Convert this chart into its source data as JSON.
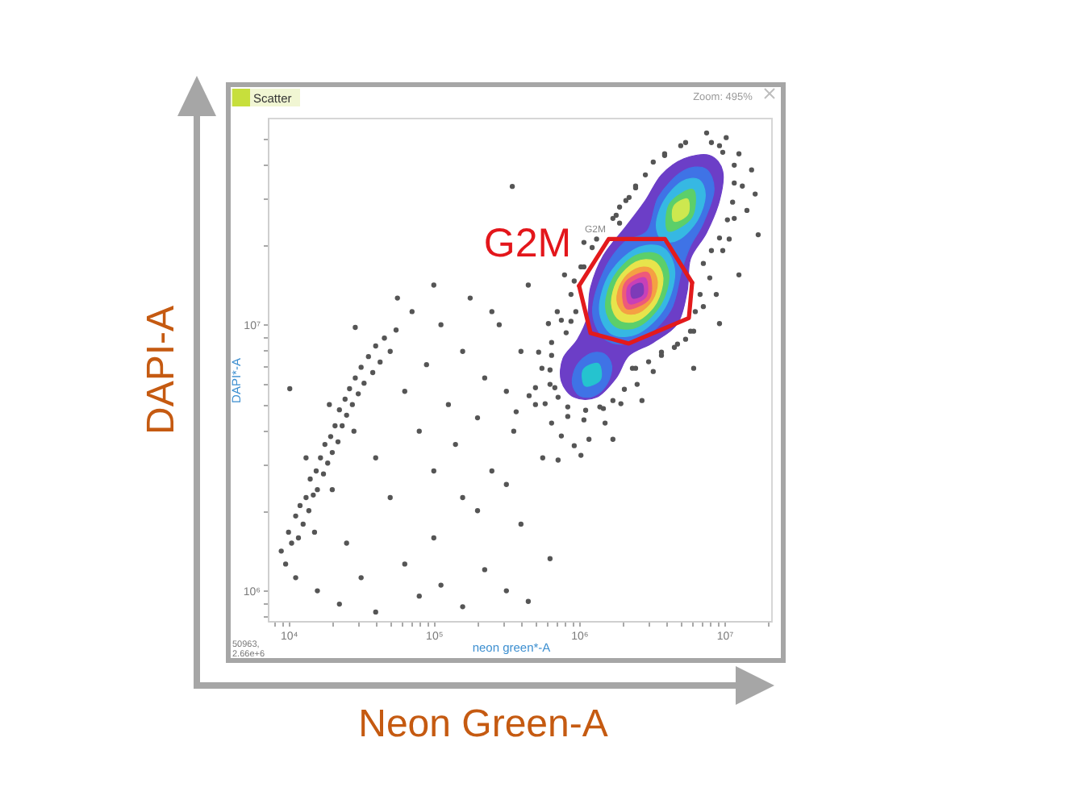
{
  "chart_data": {
    "type": "scatter",
    "title": "Scatter",
    "xlabel": "Neon Green-A",
    "ylabel": "DAPI-A",
    "log": "xy",
    "xlim": [
      7200,
      21000000
    ],
    "ylim": [
      770000,
      60000000
    ],
    "xticks": [
      {
        "value": 8000,
        "label": null
      },
      {
        "value": 9000,
        "label": null
      },
      {
        "value": 10000,
        "label": "10⁴"
      },
      {
        "value": 20000,
        "label": null
      },
      {
        "value": 30000,
        "label": null
      },
      {
        "value": 40000,
        "label": null
      },
      {
        "value": 50000,
        "label": null
      },
      {
        "value": 60000,
        "label": null
      },
      {
        "value": 70000,
        "label": null
      },
      {
        "value": 80000,
        "label": null
      },
      {
        "value": 90000,
        "label": null
      },
      {
        "value": 100000,
        "label": "10⁵"
      },
      {
        "value": 200000,
        "label": null
      },
      {
        "value": 300000,
        "label": null
      },
      {
        "value": 400000,
        "label": null
      },
      {
        "value": 500000,
        "label": null
      },
      {
        "value": 600000,
        "label": null
      },
      {
        "value": 700000,
        "label": null
      },
      {
        "value": 800000,
        "label": null
      },
      {
        "value": 900000,
        "label": null
      },
      {
        "value": 1000000,
        "label": "10⁶"
      },
      {
        "value": 2000000,
        "label": null
      },
      {
        "value": 3000000,
        "label": null
      },
      {
        "value": 4000000,
        "label": null
      },
      {
        "value": 5000000,
        "label": null
      },
      {
        "value": 6000000,
        "label": null
      },
      {
        "value": 7000000,
        "label": null
      },
      {
        "value": 8000000,
        "label": null
      },
      {
        "value": 9000000,
        "label": null
      },
      {
        "value": 10000000,
        "label": "10⁷"
      },
      {
        "value": 20000000,
        "label": null
      }
    ],
    "yticks": [
      {
        "value": 800000,
        "label": null
      },
      {
        "value": 900000,
        "label": null
      },
      {
        "value": 1000000,
        "label": "10⁶"
      },
      {
        "value": 2000000,
        "label": null
      },
      {
        "value": 3000000,
        "label": null
      },
      {
        "value": 4000000,
        "label": null
      },
      {
        "value": 5000000,
        "label": null
      },
      {
        "value": 6000000,
        "label": null
      },
      {
        "value": 7000000,
        "label": null
      },
      {
        "value": 8000000,
        "label": null
      },
      {
        "value": 9000000,
        "label": null
      },
      {
        "value": 10000000,
        "label": "10⁷"
      },
      {
        "value": 20000000,
        "label": null
      },
      {
        "value": 30000000,
        "label": null
      },
      {
        "value": 40000000,
        "label": null
      },
      {
        "value": 50000000,
        "label": null
      }
    ],
    "series": [
      {
        "color": "#555555",
        "x": [
          8910,
          9550,
          10000,
          10500,
          11200,
          11700,
          12000,
          12600,
          13200,
          13800,
          14100,
          14800,
          15500,
          15800,
          16600,
          17400,
          17800,
          18600,
          19500,
          20000,
          20900,
          21900,
          22400,
          23400,
          24500,
          25100,
          26300,
          27500,
          28800,
          30200,
          31600,
          33100,
          35500,
          38000,
          39800,
          42700,
          45700,
          50100,
          55000,
          11200,
          15100,
          20000,
          28200,
          13200,
          19100,
          10200,
          28800,
          63100,
          70800,
          79400,
          89100,
          100000,
          112000,
          126000,
          141000,
          158000,
          178000,
          200000,
          224000,
          251000,
          282000,
          316000,
          355000,
          398000,
          447000,
          501000,
          562000,
          39800,
          50100,
          158000,
          316000,
          100000,
          56200,
          251000,
          708000,
          15800,
          22400,
          31600,
          39800,
          63100,
          79400,
          112000,
          158000,
          224000,
          316000,
          447000,
          631000,
          25100,
          100000,
          398000,
          200000,
          347000,
          584000,
          647000,
          755000,
          926000,
          1170000,
          1510000,
          1940000,
          2510000,
          3240000,
          4530000,
          6150000,
          7170000,
          7940000,
          9750000,
          11700000,
          13300000,
          12600000,
          10300000,
          7550000,
          5410000,
          3880000,
          2860000,
          2210000,
          1710000,
          1320000,
          1030000,
          880000,
          755000,
          647000,
          555000,
          501000,
          681000,
          836000,
          1080000,
          1390000,
          2330000,
          3690000,
          5410000,
          8800000,
          10800000,
          14300000,
          15400000,
          9260000,
          2450000,
          1900000,
          1080000,
          794000,
          615000,
          527000,
          453000,
          717000,
          1030000,
          1710000,
          2710000,
          9260000,
          12600000,
          17100000,
          16300000,
          6150000,
          369000,
          836000,
          631000,
          647000,
          815000,
          950000,
          926000,
          1230000,
          1800000,
          2450000,
          3240000,
          5010000,
          8150000,
          11700000,
          11400000,
          9260000,
          7170000,
          6810000,
          5850000,
          3690000,
          2450000,
          2050000,
          1470000,
          717000,
          631000,
          880000,
          1080000,
          1900000,
          2100000,
          3880000,
          9750000,
          11700000,
          10500000,
          8150000,
          6310000,
          4760000,
          3010000,
          1710000,
          1110000
        ],
        "values": [
          1410000,
          1260000,
          1660000,
          1510000,
          1910000,
          1580000,
          2090000,
          1780000,
          2240000,
          2000000,
          2630000,
          2290000,
          2820000,
          2400000,
          3160000,
          2750000,
          3550000,
          3020000,
          3800000,
          3310000,
          4170000,
          3630000,
          4790000,
          4170000,
          5250000,
          4570000,
          5750000,
          5010000,
          6310000,
          5500000,
          6920000,
          6030000,
          7590000,
          6610000,
          8320000,
          7240000,
          8910000,
          7940000,
          9550000,
          1120000,
          1660000,
          2400000,
          3980000,
          3160000,
          5010000,
          5750000,
          9770000,
          5620000,
          11200000,
          3980000,
          7080000,
          2820000,
          10000000,
          5010000,
          3550000,
          7940000,
          12600000,
          4470000,
          6310000,
          2820000,
          10000000,
          5620000,
          3980000,
          7940000,
          14100000,
          5010000,
          3160000,
          3160000,
          2240000,
          2240000,
          2510000,
          14100000,
          12600000,
          11200000,
          11200000,
          1000000,
          891000,
          1120000,
          832000,
          1260000,
          955000,
          1050000,
          871000,
          1200000,
          1000000,
          912000,
          1320000,
          1510000,
          1580000,
          1780000,
          2000000,
          33100000,
          5050000,
          4270000,
          3820000,
          3510000,
          3710000,
          4270000,
          5050000,
          5970000,
          6670000,
          8220000,
          9460000,
          11700000,
          15000000,
          19000000,
          25100000,
          33200000,
          43900000,
          50500000,
          52600000,
          48400000,
          43300000,
          36600000,
          30100000,
          25100000,
          21000000,
          16500000,
          13000000,
          10400000,
          8580000,
          6860000,
          5800000,
          5800000,
          4520000,
          4390000,
          4910000,
          6860000,
          7890000,
          8820000,
          13000000,
          21000000,
          26900000,
          38200000,
          47100000,
          33200000,
          27700000,
          20400000,
          15400000,
          10100000,
          7890000,
          5410000,
          3100000,
          3230000,
          3710000,
          5190000,
          10100000,
          15400000,
          21800000,
          31000000,
          6860000,
          4710000,
          4910000,
          5970000,
          7670000,
          9330000,
          11200000,
          14600000,
          19500000,
          25800000,
          32700000,
          40900000,
          47100000,
          48400000,
          39800000,
          28900000,
          21200000,
          17000000,
          13000000,
          9460000,
          7670000,
          6860000,
          5720000,
          4840000,
          5340000,
          6760000,
          10300000,
          16500000,
          24100000,
          29300000,
          43900000,
          44500000,
          34100000,
          24800000,
          19000000,
          11200000,
          8460000,
          7260000,
          5190000,
          4770000
        ]
      },
      {
        "type": "area",
        "color": "#6c3ec7",
        "x": [
          926000,
          755000,
          774000,
          975000,
          1140000,
          1200000,
          1470000,
          2100000,
          2860000,
          3690000,
          5270000,
          7940000,
          9750000,
          9260000,
          7550000,
          5850000,
          5550000,
          4760000,
          3240000,
          2210000,
          1800000,
          1320000
        ],
        "values": [
          5340000,
          6140000,
          7460000,
          8810000,
          10700000,
          13800000,
          18200000,
          23400000,
          29300000,
          36600000,
          42100000,
          43300000,
          37700000,
          29300000,
          22200000,
          17700000,
          13400000,
          10100000,
          8580000,
          7670000,
          6310000,
          5340000
        ]
      },
      {
        "type": "area",
        "color": "#3f73e6",
        "x": [
          1490000,
          1680000,
          1560000,
          1270000,
          1010000,
          898000,
          962000,
          1190000
        ],
        "values": [
          7770000,
          6980000,
          6000000,
          5400000,
          5410000,
          6040000,
          7020000,
          7790000
        ]
      },
      {
        "type": "area",
        "color": "#25c3cf",
        "x": [
          1360000,
          1400000,
          1100000,
          1070000
        ],
        "values": [
          7140000,
          6210000,
          5890000,
          6780000
        ]
      },
      {
        "type": "area",
        "color": "#3f73e6",
        "x": [
          5150000,
          7410000,
          8490000,
          7130000,
          5850000,
          5090000,
          4260000,
          2620000,
          1570000,
          1240000,
          1480000,
          2050000,
          2960000,
          3520000
        ],
        "values": [
          37700000,
          38600000,
          32000000,
          24000000,
          19800000,
          16100000,
          11300000,
          8750000,
          8690000,
          11100000,
          15900000,
          20400000,
          22600000,
          30200000
        ]
      },
      {
        "type": "area",
        "color": "#36b8e3",
        "x": [
          3770000,
          4560000,
          3900000,
          2580000,
          1680000,
          1380000,
          1620000,
          2450000
        ],
        "values": [
          19500000,
          15800000,
          11600000,
          9310000,
          9230000,
          11400000,
          15500000,
          19300000
        ]
      },
      {
        "type": "area",
        "color": "#36b8e3",
        "x": [
          6670000,
          7390000,
          6520000,
          4930000,
          3770000,
          3400000,
          3850000,
          5090000
        ],
        "values": [
          35100000,
          30500000,
          24700000,
          21000000,
          20700000,
          23800000,
          29300000,
          34500000
        ]
      },
      {
        "type": "area",
        "color": "#5ccf6a",
        "x": [
          3530000,
          4160000,
          3650000,
          2570000,
          1790000,
          1520000,
          1730000,
          2450000
        ],
        "values": [
          18300000,
          15300000,
          11900000,
          9860000,
          9820000,
          11700000,
          15100000,
          18200000
        ]
      },
      {
        "type": "area",
        "color": "#5ccf6a",
        "x": [
          6100000,
          5980000,
          4110000,
          4200000
        ],
        "values": [
          32200000,
          25400000,
          22500000,
          28500000
        ]
      },
      {
        "type": "area",
        "color": "#e7e44c",
        "x": [
          3300000,
          3780000,
          3410000,
          2570000,
          1910000,
          1670000,
          1850000,
          2450000
        ],
        "values": [
          17300000,
          15000000,
          12100000,
          10400000,
          10400000,
          12000000,
          14800000,
          17200000
        ]
      },
      {
        "type": "area",
        "color": "#cde84f",
        "x": [
          5570000,
          5600000,
          4510000,
          4490000
        ],
        "values": [
          29700000,
          26000000,
          24500000,
          27900000
        ]
      },
      {
        "type": "area",
        "color": "#f5a043",
        "x": [
          3100000,
          3460000,
          3200000,
          2570000,
          2040000,
          1820000,
          1970000,
          2450000
        ],
        "values": [
          16300000,
          14500000,
          12400000,
          11100000,
          11100000,
          12400000,
          14500000,
          16200000
        ]
      },
      {
        "type": "area",
        "color": "#ee5a7a",
        "x": [
          2970000,
          3060000,
          2120000,
          2060000
        ],
        "values": [
          15700000,
          12600000,
          11500000,
          14300000
        ]
      },
      {
        "type": "area",
        "color": "#c740b8",
        "x": [
          2840000,
          2900000,
          2220000,
          2180000
        ],
        "values": [
          15000000,
          12800000,
          12000000,
          14000000
        ]
      },
      {
        "type": "area",
        "color": "#7d3bb8",
        "x": [
          2700000,
          2740000,
          2340000,
          2300000
        ],
        "values": [
          14300000,
          13000000,
          12600000,
          13800000
        ]
      },
      {
        "type": "line",
        "color": "#e31a1c",
        "x": [
          1000000,
          1600000,
          3900000,
          6000000
        ],
        "values": [
          14000000,
          21000000,
          21000000,
          14400000
        ]
      },
      {
        "type": "line",
        "color": "#e31a1c",
        "x": [
          1000000,
          1200000,
          2200000,
          5700000,
          6000000
        ],
        "values": [
          14000000,
          9300000,
          8500000,
          10600000,
          14400000
        ]
      }
    ],
    "annotations": [
      "G2M",
      "G2M",
      "neon green*-A",
      "DAPI*-A",
      "Zoom: 495%",
      "50963,",
      "2.66e+6"
    ]
  }
}
